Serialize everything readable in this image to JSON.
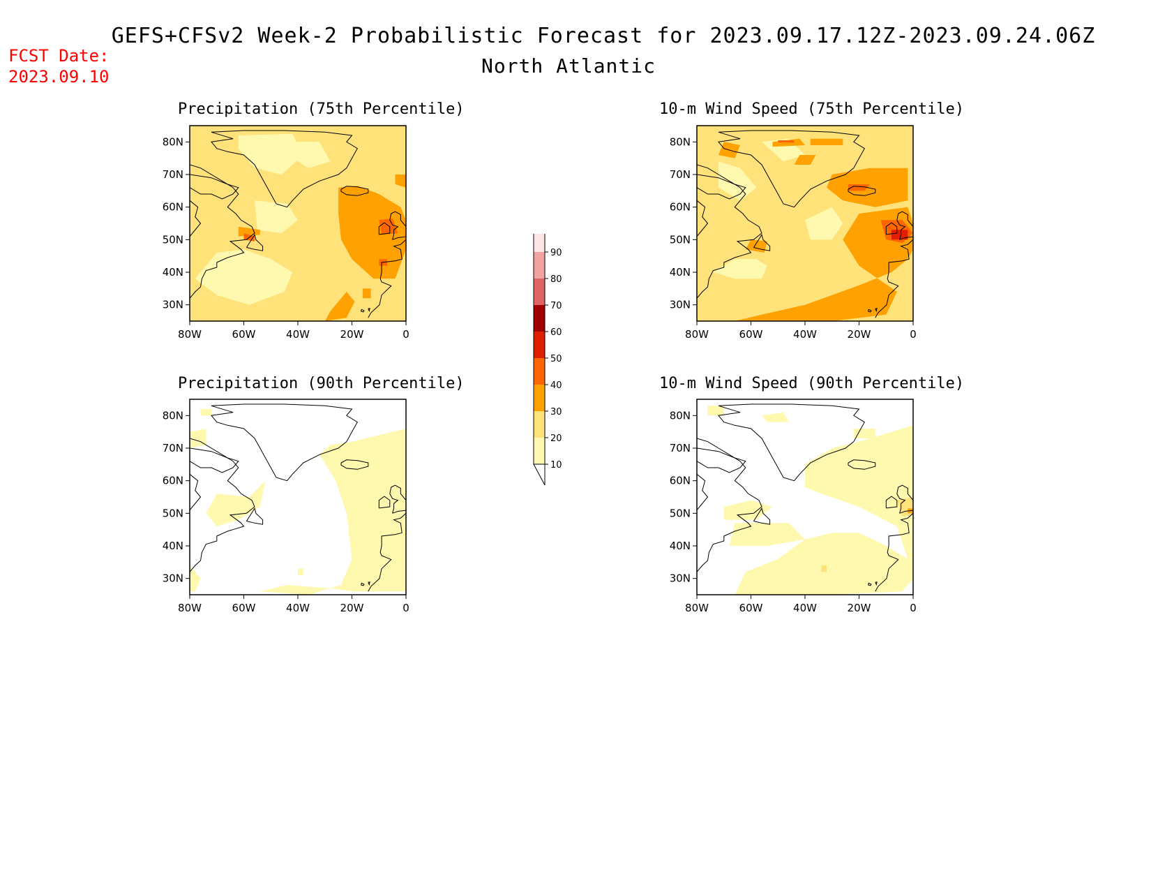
{
  "title": "GEFS+CFSv2 Week-2 Probabilistic Forecast for 2023.09.17.12Z-2023.09.24.06Z",
  "subtitle": "North Atlantic",
  "fcst_label": "FCST Date:",
  "fcst_date": "2023.09.10",
  "panels": [
    {
      "title": "Precipitation (75th Percentile)",
      "variant": "precip75"
    },
    {
      "title": "10-m Wind Speed (75th Percentile)",
      "variant": "wind75"
    },
    {
      "title": "Precipitation (90th Percentile)",
      "variant": "precip90"
    },
    {
      "title": "10-m Wind Speed (90th Percentile)",
      "variant": "wind90"
    }
  ],
  "lat_ticks": [
    "80N",
    "70N",
    "60N",
    "50N",
    "40N",
    "30N"
  ],
  "lon_ticks": [
    "80W",
    "60W",
    "40W",
    "20W",
    "0"
  ],
  "colorbar": {
    "levels": [
      "10",
      "20",
      "30",
      "40",
      "50",
      "60",
      "70",
      "80",
      "90"
    ],
    "colors": [
      "#fff9b0",
      "#ffe27a",
      "#ffa100",
      "#ff6600",
      "#e01e00",
      "#a00000",
      "#e06464",
      "#f4a3a3",
      "#ffe4e6"
    ]
  }
}
